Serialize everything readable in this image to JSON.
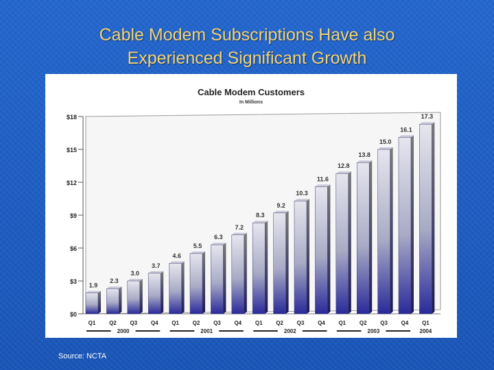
{
  "slide": {
    "title_line1": "Cable Modem Subscriptions Have also",
    "title_line2": "Experienced Significant Growth",
    "source": "Source:  NCTA"
  },
  "colors": {
    "background": "#1f5fc4",
    "title": "#f2d372",
    "bar_top": "#e4e4ec",
    "bar_bottom": "#2a2a9a"
  },
  "chart_data": {
    "type": "bar",
    "title": "Cable Modem Customers",
    "subtitle": "In Millions",
    "categories": [
      "Q1",
      "Q2",
      "Q3",
      "Q4",
      "Q1",
      "Q2",
      "Q3",
      "Q4",
      "Q1",
      "Q2",
      "Q3",
      "Q4",
      "Q1",
      "Q2",
      "Q3",
      "Q4",
      "Q1"
    ],
    "value_labels": [
      "1.9",
      "2.3",
      "3.0",
      "3.7",
      "4.6",
      "5.5",
      "6.3",
      "7.2",
      "8.3",
      "9.2",
      "10.3",
      "11.6",
      "12.8",
      "13.8",
      "15.0",
      "16.1",
      "17.3"
    ],
    "values": [
      1.9,
      2.3,
      3.0,
      3.7,
      4.6,
      5.5,
      6.3,
      7.2,
      8.3,
      9.2,
      10.3,
      11.6,
      12.8,
      13.8,
      15.0,
      16.1,
      17.3
    ],
    "groups": [
      {
        "label": "2000",
        "start": 0,
        "end": 3
      },
      {
        "label": "2001",
        "start": 4,
        "end": 7
      },
      {
        "label": "2002",
        "start": 8,
        "end": 11
      },
      {
        "label": "2003",
        "start": 12,
        "end": 15
      },
      {
        "label": "2004",
        "start": 16,
        "end": 16
      }
    ],
    "y_ticks": [
      0,
      3,
      6,
      9,
      12,
      15,
      18
    ],
    "y_tick_labels": [
      "$0",
      "$3",
      "$6",
      "$9",
      "$12",
      "$15",
      "$18"
    ],
    "ylim": [
      0,
      18
    ],
    "grid": false,
    "legend": "none"
  }
}
